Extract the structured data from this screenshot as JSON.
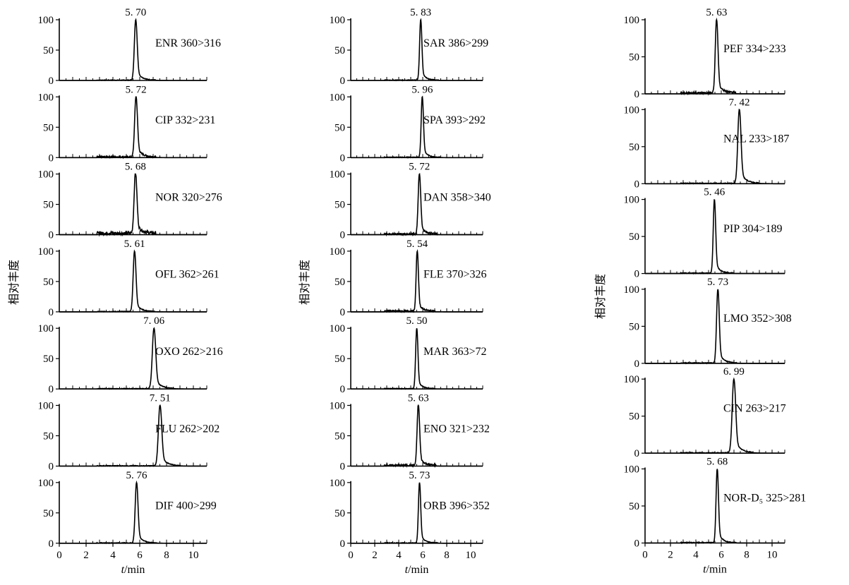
{
  "figure": {
    "ylabel": "相对丰度",
    "xlabel_italic": "t",
    "xlabel_rest": "/min",
    "y_ticks": [
      0,
      50,
      100
    ],
    "x_ticks": [
      0,
      2,
      4,
      6,
      8,
      10
    ]
  },
  "chart_data": [
    {
      "type": "line",
      "column": 1,
      "label": "ENR 360>316",
      "peak_label": "5. 70",
      "peak": 5.7,
      "width": 0.1,
      "xlim": [
        0,
        11
      ],
      "ylim": [
        0,
        100
      ],
      "noise": "low"
    },
    {
      "type": "line",
      "column": 1,
      "label": "CIP 332>231",
      "peak_label": "5. 72",
      "peak": 5.72,
      "width": 0.1,
      "xlim": [
        0,
        11
      ],
      "ylim": [
        0,
        100
      ],
      "noise": "medium"
    },
    {
      "type": "line",
      "column": 1,
      "label": "NOR 320>276",
      "peak_label": "5. 68",
      "peak": 5.68,
      "width": 0.1,
      "xlim": [
        0,
        11
      ],
      "ylim": [
        0,
        100
      ],
      "noise": "high"
    },
    {
      "type": "line",
      "column": 1,
      "label": "OFL 362>261",
      "peak_label": "5. 61",
      "peak": 5.61,
      "width": 0.1,
      "xlim": [
        0,
        11
      ],
      "ylim": [
        0,
        100
      ],
      "noise": "low"
    },
    {
      "type": "line",
      "column": 1,
      "label": "OXO 262>216",
      "peak_label": "7. 06",
      "peak": 7.06,
      "width": 0.12,
      "xlim": [
        0,
        11
      ],
      "ylim": [
        0,
        100
      ],
      "noise": "low"
    },
    {
      "type": "line",
      "column": 1,
      "label": "FLU 262>202",
      "peak_label": "7. 51",
      "peak": 7.51,
      "width": 0.12,
      "xlim": [
        0,
        11
      ],
      "ylim": [
        0,
        100
      ],
      "noise": "low"
    },
    {
      "type": "line",
      "column": 1,
      "label": "DIF 400>299",
      "peak_label": "5. 76",
      "peak": 5.76,
      "width": 0.1,
      "xlim": [
        0,
        11
      ],
      "ylim": [
        0,
        100
      ],
      "noise": "low"
    },
    {
      "type": "line",
      "column": 2,
      "label": "SAR 386>299",
      "peak_label": "5. 83",
      "peak": 5.83,
      "width": 0.09,
      "xlim": [
        0,
        11
      ],
      "ylim": [
        0,
        100
      ],
      "noise": "low"
    },
    {
      "type": "line",
      "column": 2,
      "label": "SPA 393>292",
      "peak_label": "5. 96",
      "peak": 5.96,
      "width": 0.09,
      "xlim": [
        0,
        11
      ],
      "ylim": [
        0,
        100
      ],
      "noise": "low"
    },
    {
      "type": "line",
      "column": 2,
      "label": "DAN 358>340",
      "peak_label": "5. 72",
      "peak": 5.72,
      "width": 0.1,
      "xlim": [
        0,
        11
      ],
      "ylim": [
        0,
        100
      ],
      "noise": "medium"
    },
    {
      "type": "line",
      "column": 2,
      "label": "FLE 370>326",
      "peak_label": "5. 54",
      "peak": 5.54,
      "width": 0.09,
      "xlim": [
        0,
        11
      ],
      "ylim": [
        0,
        100
      ],
      "noise": "medium"
    },
    {
      "type": "line",
      "column": 2,
      "label": "MAR 363>72",
      "peak_label": "5. 50",
      "peak": 5.5,
      "width": 0.09,
      "xlim": [
        0,
        11
      ],
      "ylim": [
        0,
        100
      ],
      "noise": "low"
    },
    {
      "type": "line",
      "column": 2,
      "label": "ENO 321>232",
      "peak_label": "5. 63",
      "peak": 5.63,
      "width": 0.1,
      "xlim": [
        0,
        11
      ],
      "ylim": [
        0,
        100
      ],
      "noise": "medium"
    },
    {
      "type": "line",
      "column": 2,
      "label": "ORB 396>352",
      "peak_label": "5. 73",
      "peak": 5.73,
      "width": 0.09,
      "xlim": [
        0,
        11
      ],
      "ylim": [
        0,
        100
      ],
      "noise": "low"
    },
    {
      "type": "line",
      "column": 3,
      "label": "PEF 334>233",
      "peak_label": "5. 63",
      "peak": 5.63,
      "width": 0.1,
      "xlim": [
        0,
        11
      ],
      "ylim": [
        0,
        100
      ],
      "noise": "medium"
    },
    {
      "type": "line",
      "column": 3,
      "label": "NAL 233>187",
      "peak_label": "7. 42",
      "peak": 7.42,
      "width": 0.12,
      "xlim": [
        0,
        11
      ],
      "ylim": [
        0,
        100
      ],
      "noise": "low"
    },
    {
      "type": "line",
      "column": 3,
      "label": "PIP 304>189",
      "peak_label": "5. 46",
      "peak": 5.46,
      "width": 0.09,
      "xlim": [
        0,
        11
      ],
      "ylim": [
        0,
        100
      ],
      "noise": "low"
    },
    {
      "type": "line",
      "column": 3,
      "label": "LMO 352>308",
      "peak_label": "5. 73",
      "peak": 5.73,
      "width": 0.1,
      "xlim": [
        0,
        11
      ],
      "ylim": [
        0,
        100
      ],
      "noise": "low"
    },
    {
      "type": "line",
      "column": 3,
      "label": "CIN 263>217",
      "peak_label": "6. 99",
      "peak": 6.99,
      "width": 0.13,
      "xlim": [
        0,
        11
      ],
      "ylim": [
        0,
        100
      ],
      "noise": "low"
    },
    {
      "type": "line",
      "column": 3,
      "label": "NOR-D₅ 325>281",
      "peak_label": "5. 68",
      "peak": 5.68,
      "width": 0.09,
      "xlim": [
        0,
        11
      ],
      "ylim": [
        0,
        100
      ],
      "noise": "low"
    }
  ]
}
